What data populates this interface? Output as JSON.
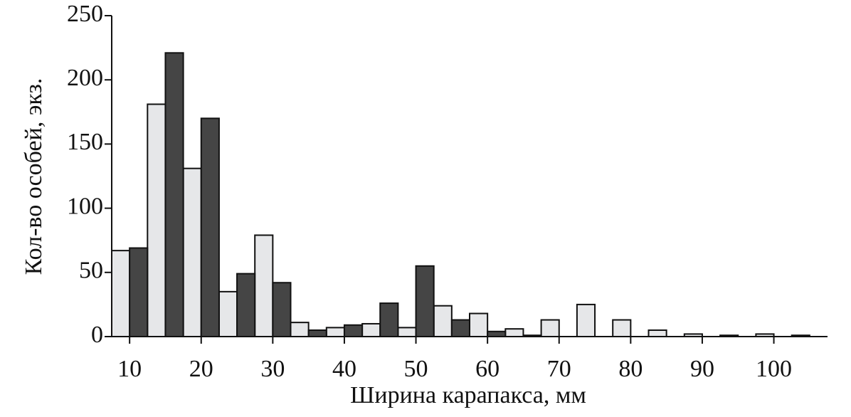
{
  "chart_data": {
    "type": "histogram",
    "x_label": "Ширина карапакса, мм",
    "y_label": "Кол-во особей, экз.",
    "bins": [
      7.5,
      10,
      12.5,
      15,
      17.5,
      20,
      22.5,
      25,
      27.5,
      30,
      32.5,
      35,
      37.5,
      40,
      42.5,
      45,
      47.5,
      50,
      52.5,
      55,
      57.5,
      60,
      62.5,
      65,
      67.5,
      70,
      72.5,
      75,
      77.5,
      80,
      82.5,
      85,
      87.5,
      90,
      92.5,
      95,
      97.5,
      100,
      102.5,
      105,
      107.5
    ],
    "series": [
      {
        "color": "#e6e7e9",
        "values": [
          67,
          null,
          181,
          null,
          131,
          null,
          35,
          null,
          79,
          null,
          11,
          null,
          7,
          null,
          10,
          null,
          7,
          null,
          24,
          null,
          18,
          null,
          6,
          null,
          13,
          null,
          25,
          null,
          13,
          null,
          5,
          null,
          2,
          null,
          1,
          null,
          2,
          null,
          1,
          null
        ]
      },
      {
        "color": "#454545",
        "values": [
          null,
          69,
          null,
          221,
          null,
          170,
          null,
          49,
          null,
          42,
          null,
          5,
          null,
          9,
          null,
          26,
          null,
          55,
          null,
          13,
          null,
          4,
          null,
          1,
          null,
          null,
          null,
          null,
          null,
          null,
          null,
          null,
          null,
          null,
          null,
          null,
          null,
          null,
          null,
          null
        ]
      }
    ],
    "xlim": [
      7.5,
      107.5
    ],
    "xticks": [
      10,
      20,
      30,
      40,
      50,
      60,
      70,
      80,
      90,
      100
    ],
    "ylim": [
      0,
      250
    ],
    "yticks": [
      0,
      50,
      100,
      150,
      200,
      250
    ]
  }
}
